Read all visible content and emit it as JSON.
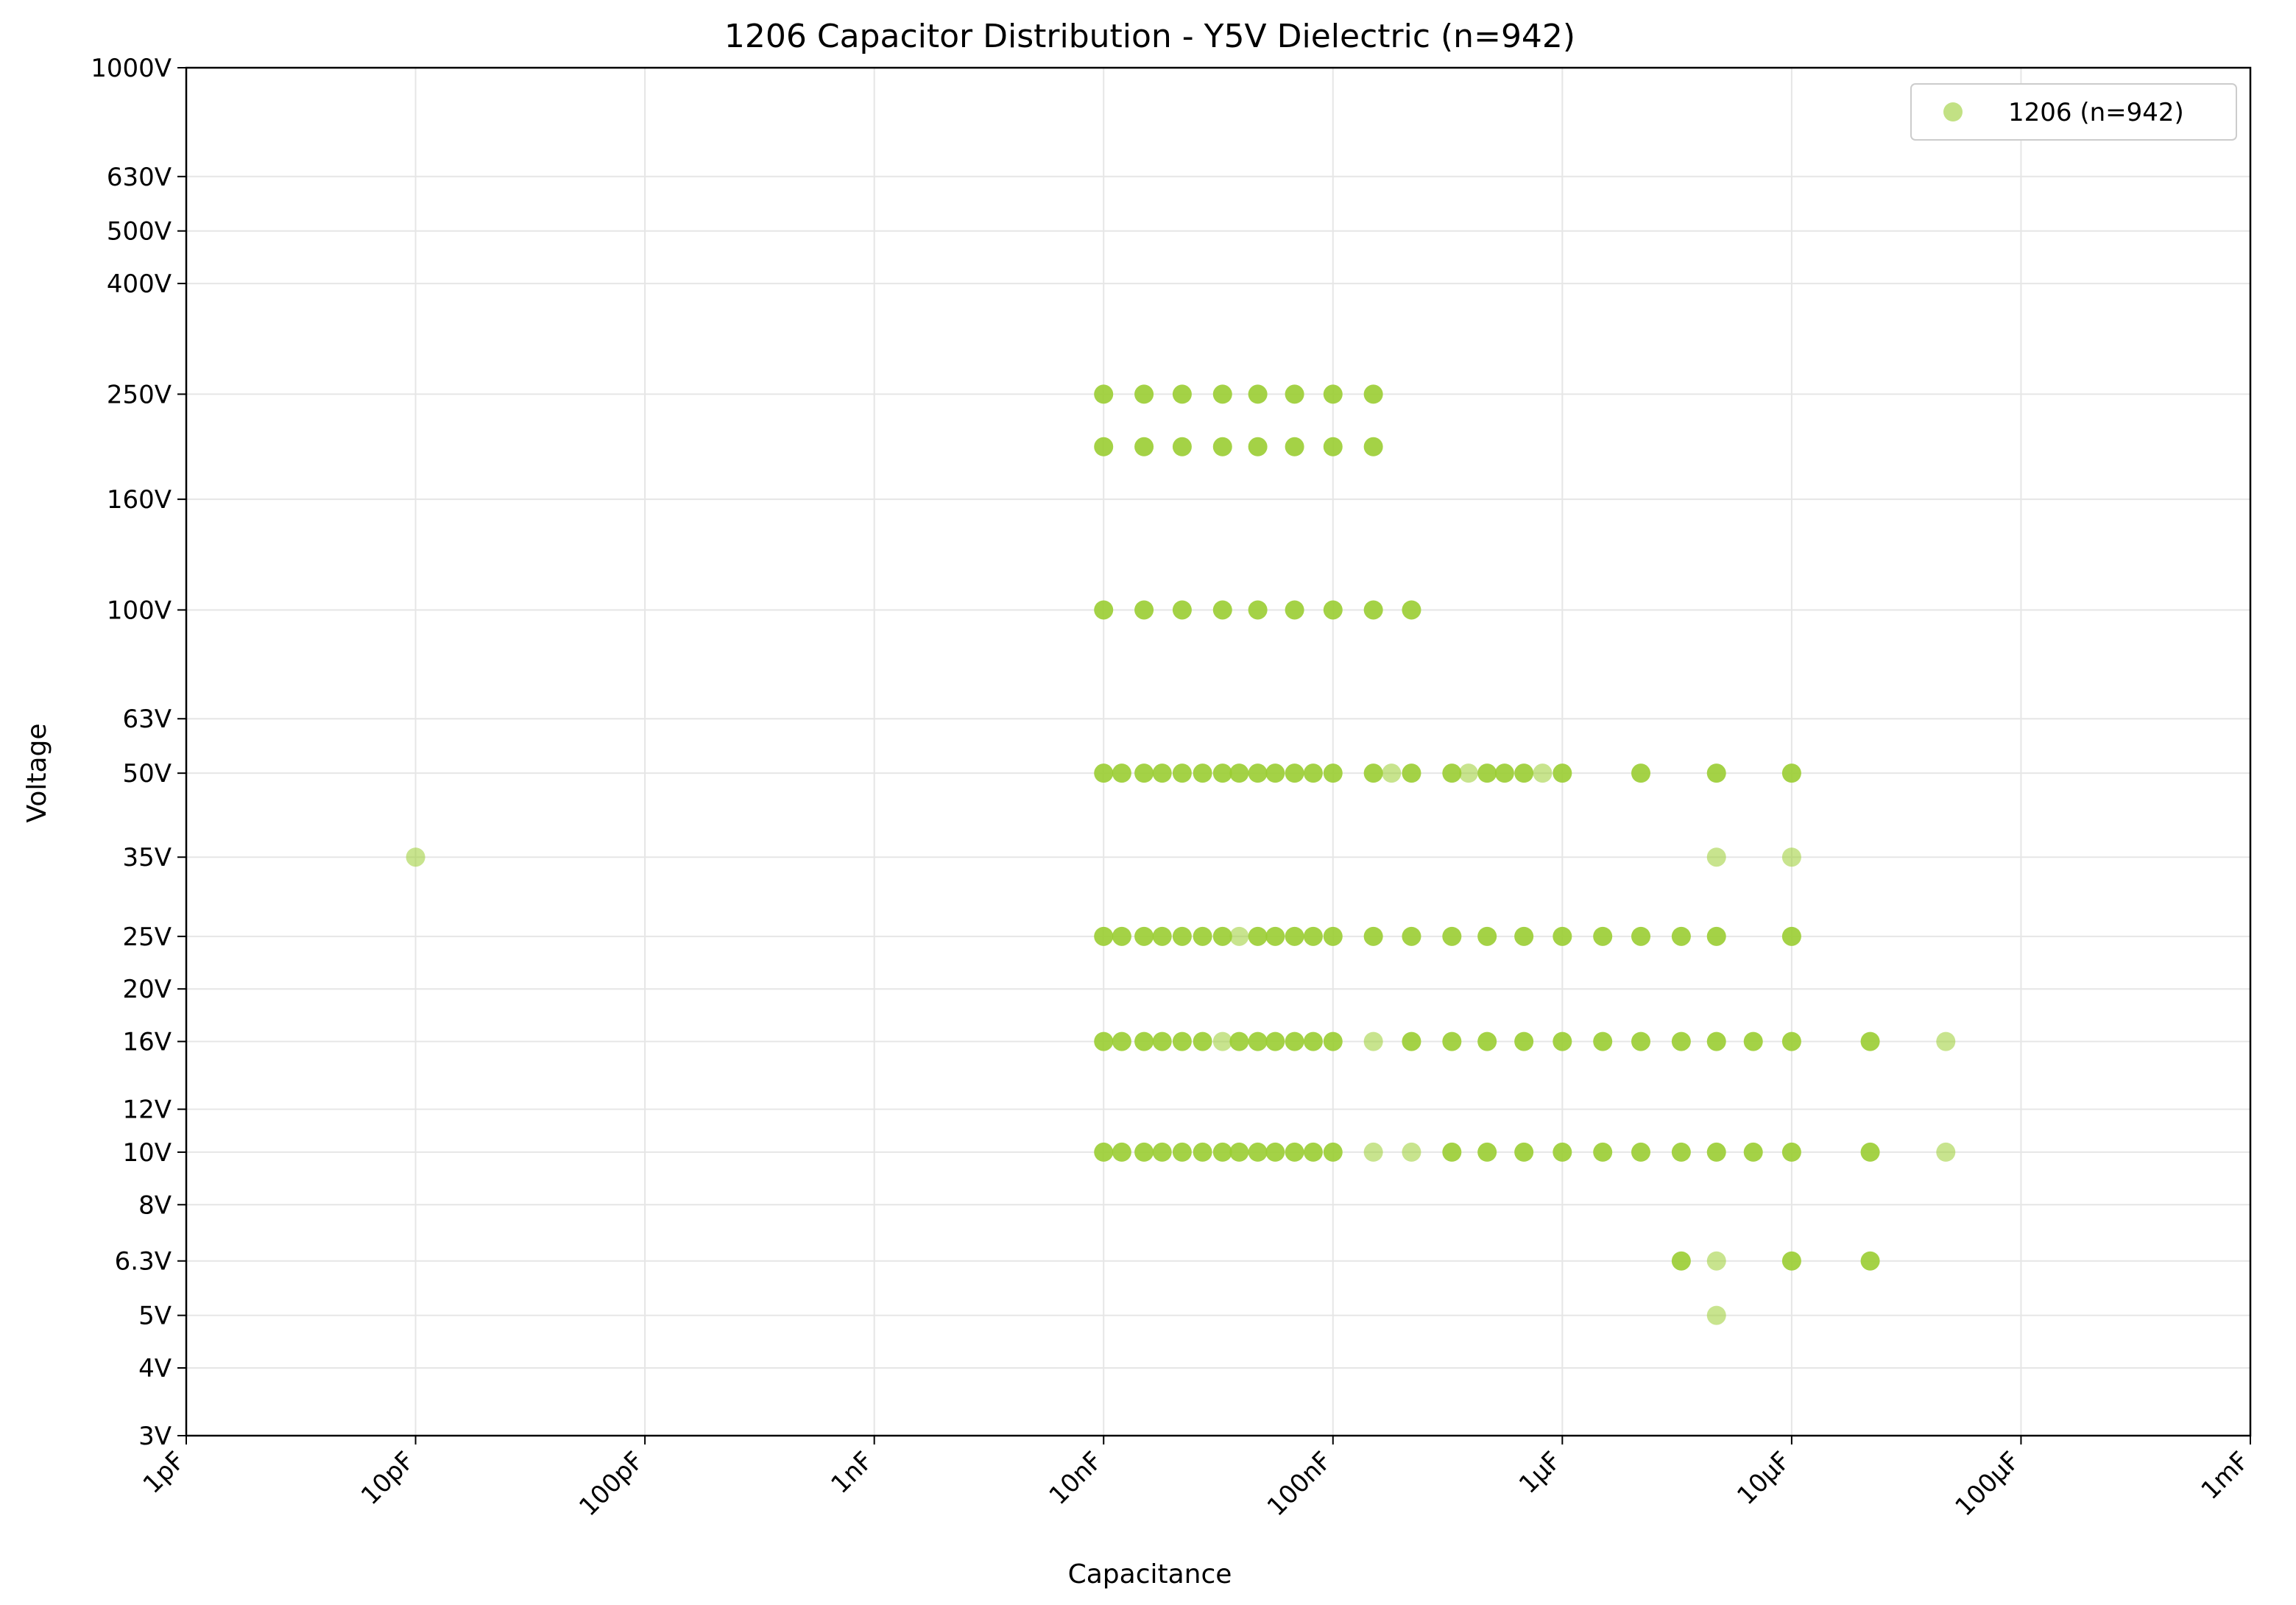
{
  "chart_data": {
    "type": "scatter",
    "title": "1206 Capacitor Distribution - Y5V Dielectric (n=942)",
    "xlabel": "Capacitance",
    "ylabel": "Voltage",
    "x_scale": "log",
    "y_scale": "log",
    "x_unit": "farad",
    "y_unit": "volt",
    "xlim": [
      1e-12,
      0.001
    ],
    "ylim": [
      3,
      1000
    ],
    "x_ticks": [
      {
        "value": 1e-12,
        "label": "1pF"
      },
      {
        "value": 1e-11,
        "label": "10pF"
      },
      {
        "value": 1e-10,
        "label": "100pF"
      },
      {
        "value": 1e-09,
        "label": "1nF"
      },
      {
        "value": 1e-08,
        "label": "10nF"
      },
      {
        "value": 1e-07,
        "label": "100nF"
      },
      {
        "value": 1e-06,
        "label": "1µF"
      },
      {
        "value": 1e-05,
        "label": "10µF"
      },
      {
        "value": 0.0001,
        "label": "100µF"
      },
      {
        "value": 0.001,
        "label": "1mF"
      }
    ],
    "y_ticks": [
      {
        "value": 3,
        "label": "3V"
      },
      {
        "value": 4,
        "label": "4V"
      },
      {
        "value": 5,
        "label": "5V"
      },
      {
        "value": 6.3,
        "label": "6.3V"
      },
      {
        "value": 8,
        "label": "8V"
      },
      {
        "value": 10,
        "label": "10V"
      },
      {
        "value": 12,
        "label": "12V"
      },
      {
        "value": 16,
        "label": "16V"
      },
      {
        "value": 20,
        "label": "20V"
      },
      {
        "value": 25,
        "label": "25V"
      },
      {
        "value": 35,
        "label": "35V"
      },
      {
        "value": 50,
        "label": "50V"
      },
      {
        "value": 63,
        "label": "63V"
      },
      {
        "value": 100,
        "label": "100V"
      },
      {
        "value": 160,
        "label": "160V"
      },
      {
        "value": 250,
        "label": "250V"
      },
      {
        "value": 400,
        "label": "400V"
      },
      {
        "value": 500,
        "label": "500V"
      },
      {
        "value": 630,
        "label": "630V"
      },
      {
        "value": 1000,
        "label": "1000V"
      }
    ],
    "grid": true,
    "legend_position": "top-right",
    "marker_color": "#9ACD32",
    "series": [
      {
        "name": "1206 (n=942)",
        "points": [
          {
            "x": 1e-08,
            "y": 250
          },
          {
            "x": 1.5e-08,
            "y": 250
          },
          {
            "x": 2.2e-08,
            "y": 250
          },
          {
            "x": 3.3e-08,
            "y": 250
          },
          {
            "x": 4.7e-08,
            "y": 250
          },
          {
            "x": 6.8e-08,
            "y": 250
          },
          {
            "x": 1e-07,
            "y": 250
          },
          {
            "x": 1.5e-07,
            "y": 250
          },
          {
            "x": 1e-08,
            "y": 200
          },
          {
            "x": 1.5e-08,
            "y": 200
          },
          {
            "x": 2.2e-08,
            "y": 200
          },
          {
            "x": 3.3e-08,
            "y": 200
          },
          {
            "x": 4.7e-08,
            "y": 200
          },
          {
            "x": 6.8e-08,
            "y": 200
          },
          {
            "x": 1e-07,
            "y": 200
          },
          {
            "x": 1.5e-07,
            "y": 200
          },
          {
            "x": 1e-08,
            "y": 100
          },
          {
            "x": 1.5e-08,
            "y": 100
          },
          {
            "x": 2.2e-08,
            "y": 100
          },
          {
            "x": 3.3e-08,
            "y": 100
          },
          {
            "x": 4.7e-08,
            "y": 100
          },
          {
            "x": 6.8e-08,
            "y": 100
          },
          {
            "x": 1e-07,
            "y": 100
          },
          {
            "x": 1.5e-07,
            "y": 100
          },
          {
            "x": 2.2e-07,
            "y": 100
          },
          {
            "x": 1e-08,
            "y": 50
          },
          {
            "x": 1.2e-08,
            "y": 50
          },
          {
            "x": 1.5e-08,
            "y": 50
          },
          {
            "x": 1.8e-08,
            "y": 50
          },
          {
            "x": 2.2e-08,
            "y": 50
          },
          {
            "x": 2.7e-08,
            "y": 50
          },
          {
            "x": 3.3e-08,
            "y": 50
          },
          {
            "x": 3.9e-08,
            "y": 50
          },
          {
            "x": 4.7e-08,
            "y": 50
          },
          {
            "x": 5.6e-08,
            "y": 50
          },
          {
            "x": 6.8e-08,
            "y": 50
          },
          {
            "x": 8.2e-08,
            "y": 50
          },
          {
            "x": 1e-07,
            "y": 50
          },
          {
            "x": 1.5e-07,
            "y": 50
          },
          {
            "x": 1.8e-07,
            "y": 50,
            "faint": true
          },
          {
            "x": 2.2e-07,
            "y": 50
          },
          {
            "x": 3.3e-07,
            "y": 50
          },
          {
            "x": 3.9e-07,
            "y": 50,
            "faint": true
          },
          {
            "x": 4.7e-07,
            "y": 50
          },
          {
            "x": 5.6e-07,
            "y": 50
          },
          {
            "x": 6.8e-07,
            "y": 50
          },
          {
            "x": 8.2e-07,
            "y": 50,
            "faint": true
          },
          {
            "x": 1e-06,
            "y": 50
          },
          {
            "x": 2.2e-06,
            "y": 50
          },
          {
            "x": 4.7e-06,
            "y": 50
          },
          {
            "x": 1e-05,
            "y": 50
          },
          {
            "x": 1e-11,
            "y": 35,
            "faint": true
          },
          {
            "x": 4.7e-06,
            "y": 35,
            "faint": true
          },
          {
            "x": 1e-05,
            "y": 35,
            "faint": true
          },
          {
            "x": 1e-08,
            "y": 25
          },
          {
            "x": 1.2e-08,
            "y": 25
          },
          {
            "x": 1.5e-08,
            "y": 25
          },
          {
            "x": 1.8e-08,
            "y": 25
          },
          {
            "x": 2.2e-08,
            "y": 25
          },
          {
            "x": 2.7e-08,
            "y": 25
          },
          {
            "x": 3.3e-08,
            "y": 25
          },
          {
            "x": 3.9e-08,
            "y": 25,
            "faint": true
          },
          {
            "x": 4.7e-08,
            "y": 25
          },
          {
            "x": 5.6e-08,
            "y": 25
          },
          {
            "x": 6.8e-08,
            "y": 25
          },
          {
            "x": 8.2e-08,
            "y": 25
          },
          {
            "x": 1e-07,
            "y": 25
          },
          {
            "x": 1.5e-07,
            "y": 25
          },
          {
            "x": 2.2e-07,
            "y": 25
          },
          {
            "x": 3.3e-07,
            "y": 25
          },
          {
            "x": 4.7e-07,
            "y": 25
          },
          {
            "x": 6.8e-07,
            "y": 25
          },
          {
            "x": 1e-06,
            "y": 25
          },
          {
            "x": 1.5e-06,
            "y": 25
          },
          {
            "x": 2.2e-06,
            "y": 25
          },
          {
            "x": 3.3e-06,
            "y": 25
          },
          {
            "x": 4.7e-06,
            "y": 25
          },
          {
            "x": 1e-05,
            "y": 25
          },
          {
            "x": 1e-08,
            "y": 16
          },
          {
            "x": 1.2e-08,
            "y": 16
          },
          {
            "x": 1.5e-08,
            "y": 16
          },
          {
            "x": 1.8e-08,
            "y": 16
          },
          {
            "x": 2.2e-08,
            "y": 16
          },
          {
            "x": 2.7e-08,
            "y": 16
          },
          {
            "x": 3.3e-08,
            "y": 16,
            "faint": true
          },
          {
            "x": 3.9e-08,
            "y": 16
          },
          {
            "x": 4.7e-08,
            "y": 16
          },
          {
            "x": 5.6e-08,
            "y": 16
          },
          {
            "x": 6.8e-08,
            "y": 16
          },
          {
            "x": 8.2e-08,
            "y": 16
          },
          {
            "x": 1e-07,
            "y": 16
          },
          {
            "x": 1.5e-07,
            "y": 16,
            "faint": true
          },
          {
            "x": 2.2e-07,
            "y": 16
          },
          {
            "x": 3.3e-07,
            "y": 16
          },
          {
            "x": 4.7e-07,
            "y": 16
          },
          {
            "x": 6.8e-07,
            "y": 16
          },
          {
            "x": 1e-06,
            "y": 16
          },
          {
            "x": 1.5e-06,
            "y": 16
          },
          {
            "x": 2.2e-06,
            "y": 16
          },
          {
            "x": 3.3e-06,
            "y": 16
          },
          {
            "x": 4.7e-06,
            "y": 16
          },
          {
            "x": 6.8e-06,
            "y": 16
          },
          {
            "x": 1e-05,
            "y": 16
          },
          {
            "x": 2.2e-05,
            "y": 16
          },
          {
            "x": 4.7e-05,
            "y": 16,
            "faint": true
          },
          {
            "x": 1e-08,
            "y": 10
          },
          {
            "x": 1.2e-08,
            "y": 10
          },
          {
            "x": 1.5e-08,
            "y": 10
          },
          {
            "x": 1.8e-08,
            "y": 10
          },
          {
            "x": 2.2e-08,
            "y": 10
          },
          {
            "x": 2.7e-08,
            "y": 10
          },
          {
            "x": 3.3e-08,
            "y": 10
          },
          {
            "x": 3.9e-08,
            "y": 10
          },
          {
            "x": 4.7e-08,
            "y": 10
          },
          {
            "x": 5.6e-08,
            "y": 10
          },
          {
            "x": 6.8e-08,
            "y": 10
          },
          {
            "x": 8.2e-08,
            "y": 10
          },
          {
            "x": 1e-07,
            "y": 10
          },
          {
            "x": 1.5e-07,
            "y": 10,
            "faint": true
          },
          {
            "x": 2.2e-07,
            "y": 10,
            "faint": true
          },
          {
            "x": 3.3e-07,
            "y": 10
          },
          {
            "x": 4.7e-07,
            "y": 10
          },
          {
            "x": 6.8e-07,
            "y": 10
          },
          {
            "x": 1e-06,
            "y": 10
          },
          {
            "x": 1.5e-06,
            "y": 10
          },
          {
            "x": 2.2e-06,
            "y": 10
          },
          {
            "x": 3.3e-06,
            "y": 10
          },
          {
            "x": 4.7e-06,
            "y": 10
          },
          {
            "x": 6.8e-06,
            "y": 10
          },
          {
            "x": 1e-05,
            "y": 10
          },
          {
            "x": 2.2e-05,
            "y": 10
          },
          {
            "x": 4.7e-05,
            "y": 10,
            "faint": true
          },
          {
            "x": 3.3e-06,
            "y": 6.3
          },
          {
            "x": 4.7e-06,
            "y": 6.3,
            "faint": true
          },
          {
            "x": 1e-05,
            "y": 6.3
          },
          {
            "x": 2.2e-05,
            "y": 6.3
          },
          {
            "x": 4.7e-06,
            "y": 5,
            "faint": true
          }
        ]
      }
    ]
  }
}
